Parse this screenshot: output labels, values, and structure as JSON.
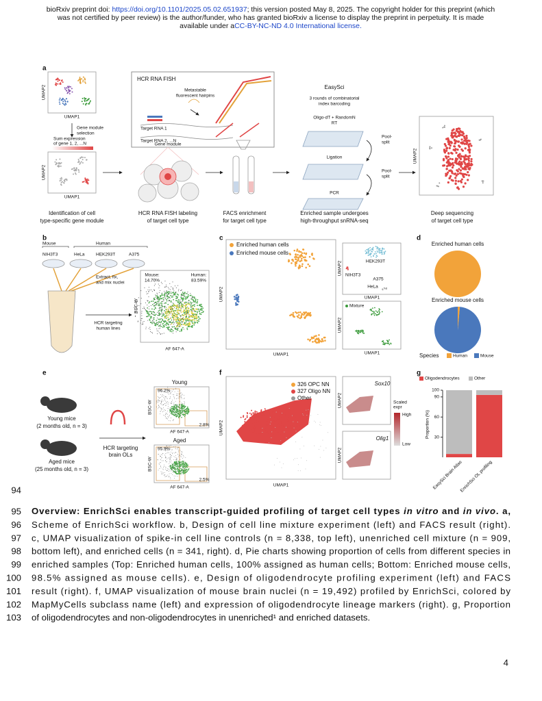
{
  "header": {
    "line1_pre": "bioRxiv preprint doi: ",
    "doi": "https://doi.org/10.1101/2025.05.02.651937",
    "line1_post": "; this version posted May 8, 2025. The copyright holder for this preprint (which",
    "line2": "was not certified by peer review) is the author/funder, who has granted bioRxiv a license to display the preprint in perpetuity. It is made",
    "line3_pre": "available under a",
    "license": "CC-BY-NC-ND 4.0 International license."
  },
  "figure": {
    "a": {
      "label": "a",
      "umap1": "UMAP1",
      "umap2": "UMAP2",
      "gene_module_selection": [
        "Gene module",
        "selection"
      ],
      "sum_expression": [
        "Sum expression",
        "of gene 1, 2, ...N"
      ],
      "step1": [
        "Identification of cell",
        "type-specific gene module"
      ],
      "hcr_title": "HCR RNA FISH",
      "hairpins": [
        "Metastable",
        "fluorescent hairpins"
      ],
      "target_rna_1": "Target RNA 1",
      "target_rna_2": "Target RNA 2, ...N",
      "gene_module": "Gene module",
      "step2": [
        "HCR RNA FISH labeling",
        "of target cell type"
      ],
      "step3": [
        "FACS enrichment",
        "for target cell type"
      ],
      "easysci": "EasySci",
      "rounds": [
        "3 rounds of combinatorial",
        "index barcoding"
      ],
      "rt": [
        "Oligo-dT + RandomN",
        "RT"
      ],
      "ligation": "Ligation",
      "pcr": "PCR",
      "pool_split": [
        "Pool-",
        "split"
      ],
      "step4": [
        "Enriched sample undergoes",
        "high-throughput snRNA-seq"
      ],
      "step5": [
        "Deep sequencing",
        "of target cell type"
      ]
    },
    "b": {
      "label": "b",
      "mouse": "Mouse",
      "human": "Human",
      "lines": [
        "NIH3T3",
        "HeLa",
        "HEK293T",
        "A375"
      ],
      "extract": [
        "Extract, fix,",
        "and mix nuclei"
      ],
      "hcr": [
        "HCR targeting",
        "human lines"
      ],
      "mouse_gate": [
        "Mouse:",
        "14.70%"
      ],
      "human_gate": [
        "Human:",
        "83.59%"
      ],
      "ylabel": "BSC-W",
      "xlabel": "AF 647-A"
    },
    "c": {
      "label": "c",
      "legend": [
        "Enriched human cells",
        "Enriched mouse cells"
      ],
      "colors": [
        "#f2a33a",
        "#4a78bc"
      ],
      "umap1": "UMAP1",
      "umap2": "UMAP2",
      "clusters": [
        "HEK293T",
        "NIH3T3",
        "A375",
        "HeLa"
      ],
      "mixture": "Mixture"
    },
    "d": {
      "label": "d",
      "pies": [
        {
          "title": "Enriched human cells",
          "values": [
            100,
            0
          ]
        },
        {
          "title": "Enriched mouse cells",
          "values": [
            1.5,
            98.5
          ]
        }
      ],
      "legend_title": "Species",
      "species": [
        "Human",
        "Mouse"
      ],
      "colors": [
        "#f2a33a",
        "#4a78bc"
      ]
    },
    "e": {
      "label": "e",
      "young": [
        "Young mice",
        "(2 months old, n = 3)"
      ],
      "aged": [
        "Aged mice",
        "(25 months old, n = 3)"
      ],
      "hcr": [
        "HCR targeting",
        "brain OLs"
      ],
      "young_title": "Young",
      "aged_title": "Aged",
      "young_gates": [
        "96.2%",
        "2.8%"
      ],
      "aged_gates": [
        "95.9%",
        "2.5%"
      ],
      "ylabel": "BSC-W",
      "xlabel": "AF 647-A"
    },
    "f": {
      "label": "f",
      "legend": [
        "326 OPC NN",
        "327 Oligo NN",
        "Other"
      ],
      "colors": [
        "#f2a33a",
        "#e04646",
        "#999999"
      ],
      "genes": [
        "Sox10",
        "Olig1"
      ],
      "scale_title": [
        "Scaled",
        "expr"
      ],
      "high": "High",
      "low": "Low",
      "umap1": "UMAP1",
      "umap2": "UMAP2"
    },
    "g": {
      "label": "g",
      "type": "bar",
      "categories": [
        "EasySci Brain Atlas",
        "EnrichSci OL profiling"
      ],
      "series": [
        {
          "name": "Oligodendrocytes",
          "color": "#e04646",
          "values": [
            5,
            93
          ]
        },
        {
          "name": "Other",
          "color": "#bdbdbd",
          "values": [
            95,
            7
          ]
        }
      ],
      "ylabel": "Proportion (%)",
      "ylim": [
        0,
        100
      ],
      "yticks": [
        30,
        60,
        90,
        100
      ]
    }
  },
  "caption": {
    "line_numbers": [
      94,
      95,
      96,
      97,
      98,
      99,
      100,
      101,
      102,
      103
    ],
    "first_line": [
      {
        "text": "Overview: EnrichSci enables transcript-guided profiling of target cell types ",
        "b": true
      },
      {
        "text": "in vitro",
        "b": true,
        "i": true
      },
      {
        "text": " and ",
        "b": true
      },
      {
        "text": "in vivo",
        "b": true,
        "i": true
      },
      {
        "text": ". a,",
        "b": true
      }
    ],
    "lines": [
      "Scheme of EnrichSci workflow. b, Design of cell line mixture experiment (left) and FACS result (right).",
      "c, UMAP visualization of spike-in cell line controls (n = 8,338, top left), unenriched cell mixture (n = 909,",
      "bottom left), and enriched cells (n = 341, right). d, Pie charts showing proportion of cells from different species in",
      "enriched samples (Top: Enriched human cells, 100% assigned as human cells; Bottom: Enriched mouse cells,",
      "98.5% assigned as mouse cells). e, Design of oligodendrocyte profiling experiment (left) and FACS",
      "result (right). f, UMAP visualization of mouse brain nuclei (n = 19,492) profiled by EnrichSci, colored by",
      "MapMyCells subclass name (left) and expression of oligodendrocyte lineage markers (right). g, Proportion",
      "of oligodendrocytes and non-oligodendrocytes in unenriched¹ and enriched datasets."
    ]
  },
  "page_number": 4
}
